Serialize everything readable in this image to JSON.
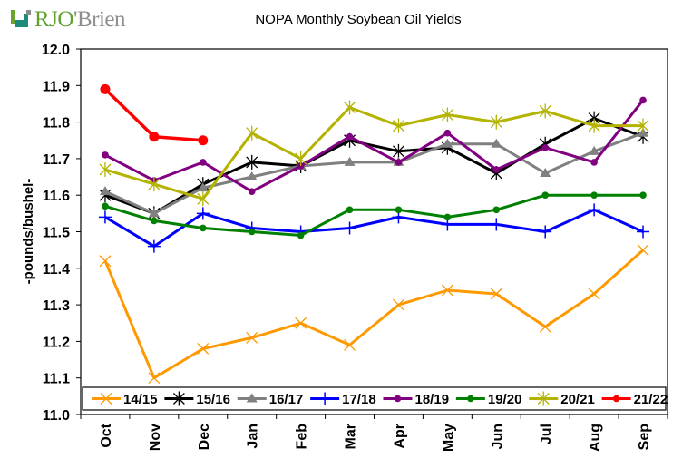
{
  "logo": {
    "brand_part1": "RJO",
    "brand_part2": "'Brien"
  },
  "chart_data": {
    "type": "line",
    "title": "NOPA Monthly Soybean Oil Yields",
    "xlabel": "",
    "ylabel": "-pounds/bushel-",
    "ylim": [
      11.0,
      12.0
    ],
    "yticks": [
      "11.0",
      "11.1",
      "11.2",
      "11.3",
      "11.4",
      "11.5",
      "11.6",
      "11.7",
      "11.8",
      "11.9",
      "12.0"
    ],
    "grid": true,
    "legend_position": "bottom-inside",
    "categories": [
      "Oct",
      "Nov",
      "Dec",
      "Jan",
      "Feb",
      "Mar",
      "Apr",
      "May",
      "Jun",
      "Jul",
      "Aug",
      "Sep"
    ],
    "series": [
      {
        "name": "14/15",
        "color": "#ff9900",
        "marker": "x",
        "values": [
          11.42,
          11.1,
          11.18,
          11.21,
          11.25,
          11.19,
          11.3,
          11.34,
          11.33,
          11.24,
          11.33,
          11.45
        ]
      },
      {
        "name": "15/16",
        "color": "#000000",
        "marker": "star",
        "values": [
          11.6,
          11.55,
          11.63,
          11.69,
          11.68,
          11.75,
          11.72,
          11.73,
          11.66,
          11.74,
          11.81,
          11.76
        ]
      },
      {
        "name": "16/17",
        "color": "#808080",
        "marker": "triangle",
        "values": [
          11.61,
          11.55,
          11.62,
          11.65,
          11.68,
          11.69,
          11.69,
          11.74,
          11.74,
          11.66,
          11.72,
          11.77
        ]
      },
      {
        "name": "17/18",
        "color": "#0000ff",
        "marker": "plus",
        "values": [
          11.54,
          11.46,
          11.55,
          11.51,
          11.5,
          11.51,
          11.54,
          11.52,
          11.52,
          11.5,
          11.56,
          11.5
        ]
      },
      {
        "name": "18/19",
        "color": "#800080",
        "marker": "circle",
        "values": [
          11.71,
          11.64,
          11.69,
          11.61,
          11.68,
          11.76,
          11.69,
          11.77,
          11.67,
          11.73,
          11.69,
          11.86
        ]
      },
      {
        "name": "19/20",
        "color": "#008000",
        "marker": "circle",
        "values": [
          11.57,
          11.53,
          11.51,
          11.5,
          11.49,
          11.56,
          11.56,
          11.54,
          11.56,
          11.6,
          11.6,
          11.6
        ]
      },
      {
        "name": "20/21",
        "color": "#b3b300",
        "marker": "star",
        "values": [
          11.67,
          11.63,
          11.59,
          11.77,
          11.7,
          11.84,
          11.79,
          11.82,
          11.8,
          11.83,
          11.79,
          11.79
        ]
      },
      {
        "name": "21/22",
        "color": "#ff0000",
        "marker": "bigcircle",
        "values": [
          11.89,
          11.76,
          11.75,
          null,
          null,
          null,
          null,
          null,
          null,
          null,
          null,
          null
        ]
      }
    ]
  }
}
